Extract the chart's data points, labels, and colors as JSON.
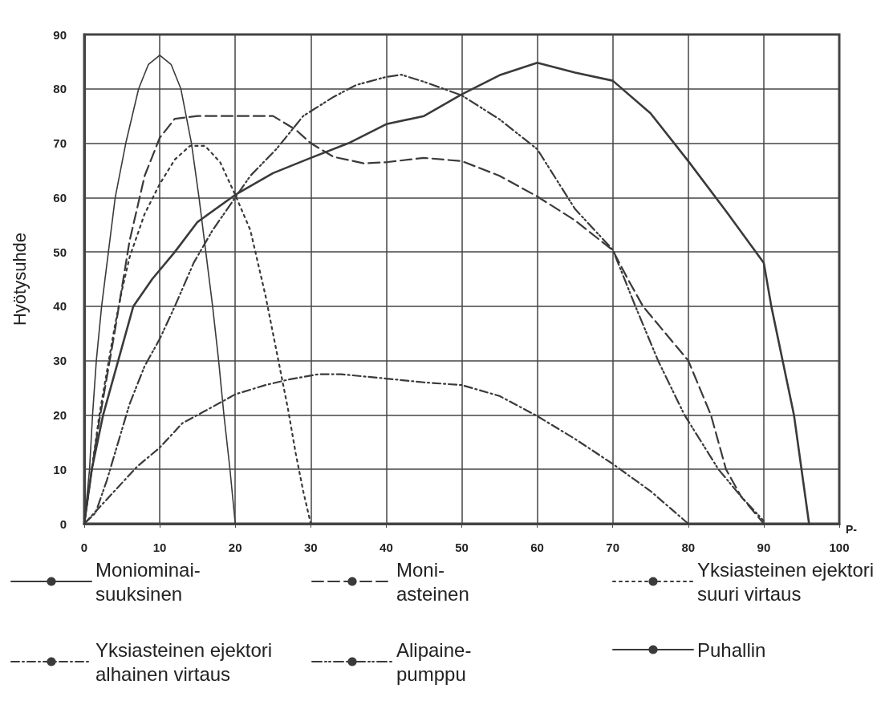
{
  "chart_data": {
    "type": "line",
    "xlabel": "P-",
    "ylabel": "Hyötysuhde",
    "xlim": [
      0,
      100
    ],
    "xticks": [
      0,
      10,
      20,
      30,
      40,
      50,
      60,
      70,
      80,
      90,
      100
    ],
    "ylim": [
      0,
      90
    ],
    "yticks": [
      0,
      10,
      20,
      30,
      40,
      50,
      60,
      70,
      80,
      90
    ],
    "grid": true,
    "legend": "bottom",
    "marker": "none",
    "series": [
      {
        "name": "Moniominai-\nsuuksinen",
        "color": "#3a3a3a",
        "line_style": "solid",
        "x": [
          0,
          1,
          2.5,
          4.5,
          6.5,
          9,
          12,
          15,
          20,
          25,
          30,
          35,
          40,
          45,
          50,
          55,
          60,
          65,
          70,
          75,
          80,
          85,
          90,
          91,
          92.5,
          94,
          95,
          96
        ],
        "values": [
          0,
          10,
          20,
          30,
          40,
          45,
          50,
          55.5,
          60.5,
          64.5,
          67.3,
          70,
          73.5,
          75,
          79,
          82.5,
          84.8,
          83,
          81.5,
          75.5,
          66.7,
          57.5,
          48,
          40,
          30,
          20,
          10,
          0
        ]
      },
      {
        "name": "Moni-\nasteinen",
        "color": "#3a3a3a",
        "line_style": "dashed",
        "x": [
          0,
          1,
          2,
          3,
          4,
          6,
          8,
          10,
          12,
          15,
          20,
          25,
          28,
          30,
          33,
          37,
          40,
          45,
          50,
          55,
          60,
          65,
          70,
          72,
          74,
          77,
          80,
          83,
          85,
          87,
          90
        ],
        "values": [
          0,
          10,
          19,
          27,
          35,
          52,
          64,
          71,
          74.5,
          75,
          75,
          75,
          72.5,
          70,
          67.5,
          66.3,
          66.5,
          67.3,
          66.7,
          64,
          60.2,
          55.8,
          50.3,
          45,
          40,
          35,
          30,
          20,
          10,
          5,
          0
        ]
      },
      {
        "name": "Yksiasteinen ejektori\nsuuri virtaus",
        "color": "#3a3a3a",
        "line_style": "dotted",
        "x": [
          0,
          1,
          2,
          3,
          4,
          5,
          6,
          8,
          10,
          12,
          14,
          16,
          18,
          20,
          22,
          24,
          25,
          26,
          27,
          28,
          29,
          30
        ],
        "values": [
          0,
          10,
          20,
          28,
          36,
          43,
          49,
          57,
          62.5,
          67,
          69.5,
          69.5,
          66.5,
          60.5,
          54,
          42,
          35,
          28,
          21,
          13,
          6,
          0
        ]
      },
      {
        "name": "Yksiasteinen ejektori\nalhainen virtaus",
        "color": "#3a3a3a",
        "line_style": "dashdot",
        "x": [
          0,
          2,
          4,
          7,
          10,
          13,
          17,
          20,
          24,
          27,
          31,
          34,
          40,
          45,
          50,
          55,
          60,
          65,
          70,
          75,
          80
        ],
        "values": [
          0,
          3,
          6,
          10.5,
          14,
          18.5,
          21.5,
          23.8,
          25.5,
          26.5,
          27.5,
          27.5,
          26.7,
          26,
          25.5,
          23.5,
          19.8,
          15.6,
          11,
          6,
          0
        ]
      },
      {
        "name": "Alipaine-\npumppu",
        "color": "#3a3a3a",
        "line_style": "dashdotdot",
        "x": [
          0,
          1.5,
          3,
          4.5,
          6,
          8,
          10,
          12,
          14.5,
          17,
          20,
          22,
          25.5,
          29,
          33,
          36,
          40,
          42,
          45,
          50,
          55,
          60,
          65,
          70,
          73,
          76,
          79.5,
          84,
          87,
          90
        ],
        "values": [
          0,
          2,
          8,
          15,
          22,
          29,
          34,
          40,
          48,
          54,
          60,
          64,
          69,
          75,
          78.5,
          80.7,
          82.2,
          82.6,
          81.3,
          78.8,
          74.4,
          68.9,
          57.9,
          50.4,
          40,
          30,
          20,
          10,
          5,
          0.5
        ]
      },
      {
        "name": "Puhallin",
        "color": "#3a3a3a",
        "line_style": "solid",
        "x": [
          0,
          0.7,
          1.1,
          1.6,
          2.3,
          3.2,
          4.1,
          5.5,
          7.2,
          8.5,
          10,
          11.5,
          12.8,
          14.2,
          15.2,
          16.1,
          17,
          17.8,
          18.5,
          19.3,
          20
        ],
        "values": [
          0,
          10,
          20,
          30,
          40,
          50,
          60,
          70,
          80,
          84.5,
          86.2,
          84.5,
          80,
          70,
          60,
          50,
          40,
          30,
          20,
          10,
          0
        ]
      }
    ]
  }
}
